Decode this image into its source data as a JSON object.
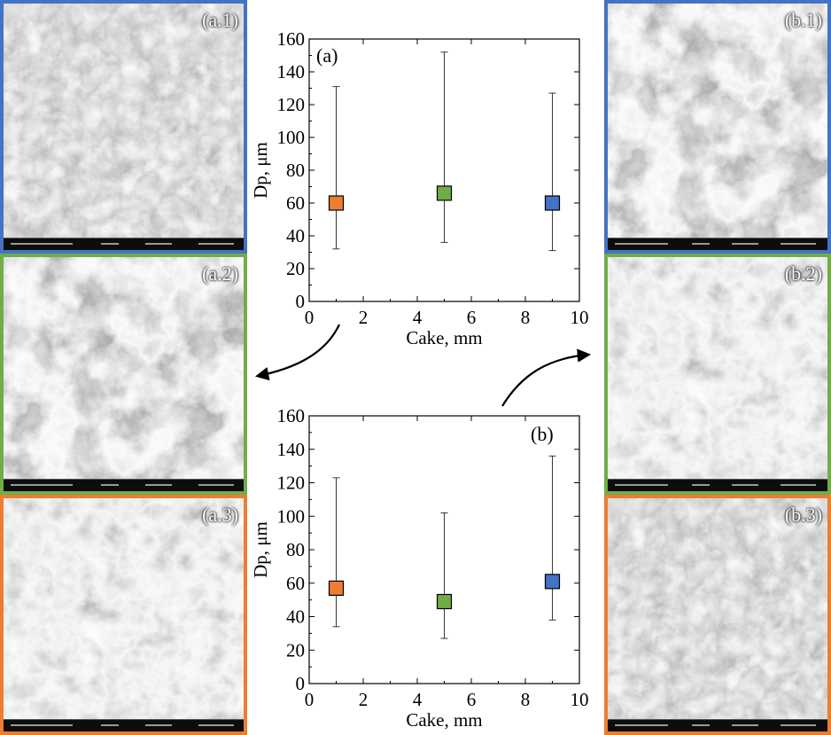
{
  "panels": {
    "a1": {
      "label": "(a.1)",
      "border": "#4472c4"
    },
    "a2": {
      "label": "(a.2)",
      "border": "#70ad47"
    },
    "a3": {
      "label": "(a.3)",
      "border": "#ed7d31"
    },
    "b1": {
      "label": "(b.1)",
      "border": "#4472c4"
    },
    "b2": {
      "label": "(b.2)",
      "border": "#70ad47"
    },
    "b3": {
      "label": "(b.3)",
      "border": "#ed7d31"
    }
  },
  "chart_data": [
    {
      "type": "scatter",
      "panel_label": "(a)",
      "xlabel": "Cake, mm",
      "ylabel": "Dp, μm",
      "xlim": [
        0,
        10
      ],
      "ylim": [
        0,
        160
      ],
      "xticks": [
        0,
        2,
        4,
        6,
        8,
        10
      ],
      "yticks": [
        0,
        20,
        40,
        60,
        80,
        100,
        120,
        140,
        160
      ],
      "grid": false,
      "points": [
        {
          "x": 1,
          "y": 60,
          "low": 32,
          "high": 131,
          "color": "#ed7d31"
        },
        {
          "x": 5,
          "y": 66,
          "low": 36,
          "high": 152,
          "color": "#70ad47"
        },
        {
          "x": 9,
          "y": 60,
          "low": 31,
          "high": 127,
          "color": "#4472c4"
        }
      ]
    },
    {
      "type": "scatter",
      "panel_label": "(b)",
      "xlabel": "Cake, mm",
      "ylabel": "Dp, μm",
      "xlim": [
        0,
        10
      ],
      "ylim": [
        0,
        160
      ],
      "xticks": [
        0,
        2,
        4,
        6,
        8,
        10
      ],
      "yticks": [
        0,
        20,
        40,
        60,
        80,
        100,
        120,
        140,
        160
      ],
      "grid": false,
      "points": [
        {
          "x": 1,
          "y": 57,
          "low": 34,
          "high": 123,
          "color": "#ed7d31"
        },
        {
          "x": 5,
          "y": 49,
          "low": 27,
          "high": 102,
          "color": "#70ad47"
        },
        {
          "x": 9,
          "y": 61,
          "low": 38,
          "high": 136,
          "color": "#4472c4"
        }
      ]
    }
  ]
}
